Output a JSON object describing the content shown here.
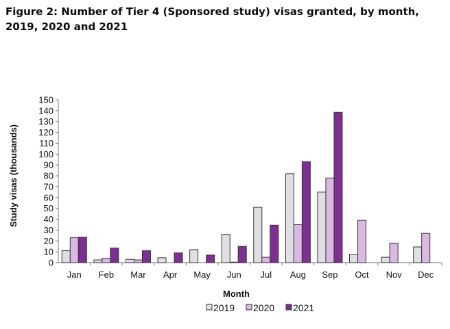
{
  "chart_data": {
    "type": "bar",
    "title": "Figure 2: Number of Tier 4 (Sponsored study) visas granted, by month, 2019, 2020 and 2021",
    "xlabel": "Month",
    "ylabel": "Study visas (thousands)",
    "ylim": [
      0,
      150
    ],
    "yticks": [
      0,
      10,
      20,
      30,
      40,
      50,
      60,
      70,
      80,
      90,
      100,
      110,
      120,
      130,
      140,
      150
    ],
    "categories": [
      "Jan",
      "Feb",
      "Mar",
      "Apr",
      "May",
      "Jun",
      "Jul",
      "Aug",
      "Sep",
      "Oct",
      "Nov",
      "Dec"
    ],
    "legend_position": "bottom",
    "series": [
      {
        "name": "2019",
        "color": "#e0e0e4",
        "values": [
          11,
          2.5,
          3,
          4.5,
          12,
          26,
          51,
          82,
          65,
          7.5,
          5,
          14.5
        ]
      },
      {
        "name": "2020",
        "color": "#dcb8e4",
        "values": [
          23,
          4,
          2.5,
          null,
          null,
          0.5,
          5,
          35,
          78,
          39,
          18,
          27
        ]
      },
      {
        "name": "2021",
        "color": "#7f2f91",
        "values": [
          23.5,
          13.5,
          11,
          9,
          7,
          15,
          34.5,
          93,
          138.5,
          null,
          null,
          null
        ]
      }
    ]
  }
}
